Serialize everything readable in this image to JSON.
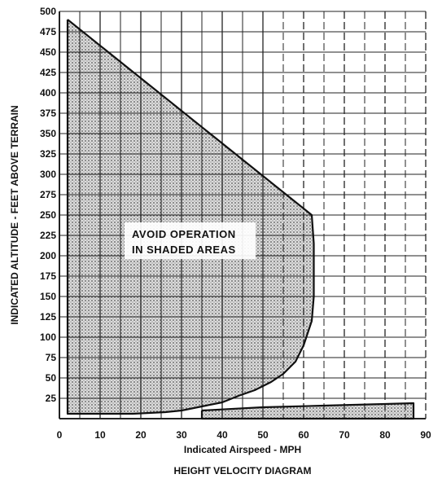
{
  "chart_data": {
    "type": "area",
    "title": "HEIGHT VELOCITY DIAGRAM",
    "xlabel": "Indicated Airspeed - MPH",
    "ylabel": "INDICATED ALTITUDE - FEET ABOVE TERRAIN",
    "xlim": [
      0,
      90
    ],
    "ylim": [
      0,
      500
    ],
    "x_ticks": [
      "0",
      "10",
      "20",
      "30",
      "40",
      "50",
      "60",
      "70",
      "80",
      "90"
    ],
    "y_ticks": [
      "25",
      "50",
      "75",
      "100",
      "125",
      "150",
      "175",
      "200",
      "225",
      "250",
      "275",
      "300",
      "325",
      "350",
      "375",
      "400",
      "425",
      "450",
      "475",
      "500"
    ],
    "grid": true,
    "annotation": [
      "AVOID OPERATION",
      "IN SHADED AREAS"
    ],
    "regions": [
      {
        "x": [
          2,
          62,
          62.5,
          62.5,
          62,
          60,
          58,
          55,
          52,
          48,
          44,
          40,
          35,
          30,
          26,
          22,
          18,
          14,
          10,
          6,
          2,
          2
        ],
        "y": [
          490,
          250,
          215,
          150,
          120,
          90,
          70,
          55,
          45,
          35,
          28,
          20,
          15,
          10,
          8,
          7,
          6,
          6,
          6,
          6,
          6,
          490
        ]
      },
      {
        "x": [
          35,
          50,
          65,
          80,
          87,
          87,
          35,
          35
        ],
        "y": [
          10,
          14,
          16,
          18,
          19,
          0,
          0,
          10
        ]
      }
    ]
  }
}
